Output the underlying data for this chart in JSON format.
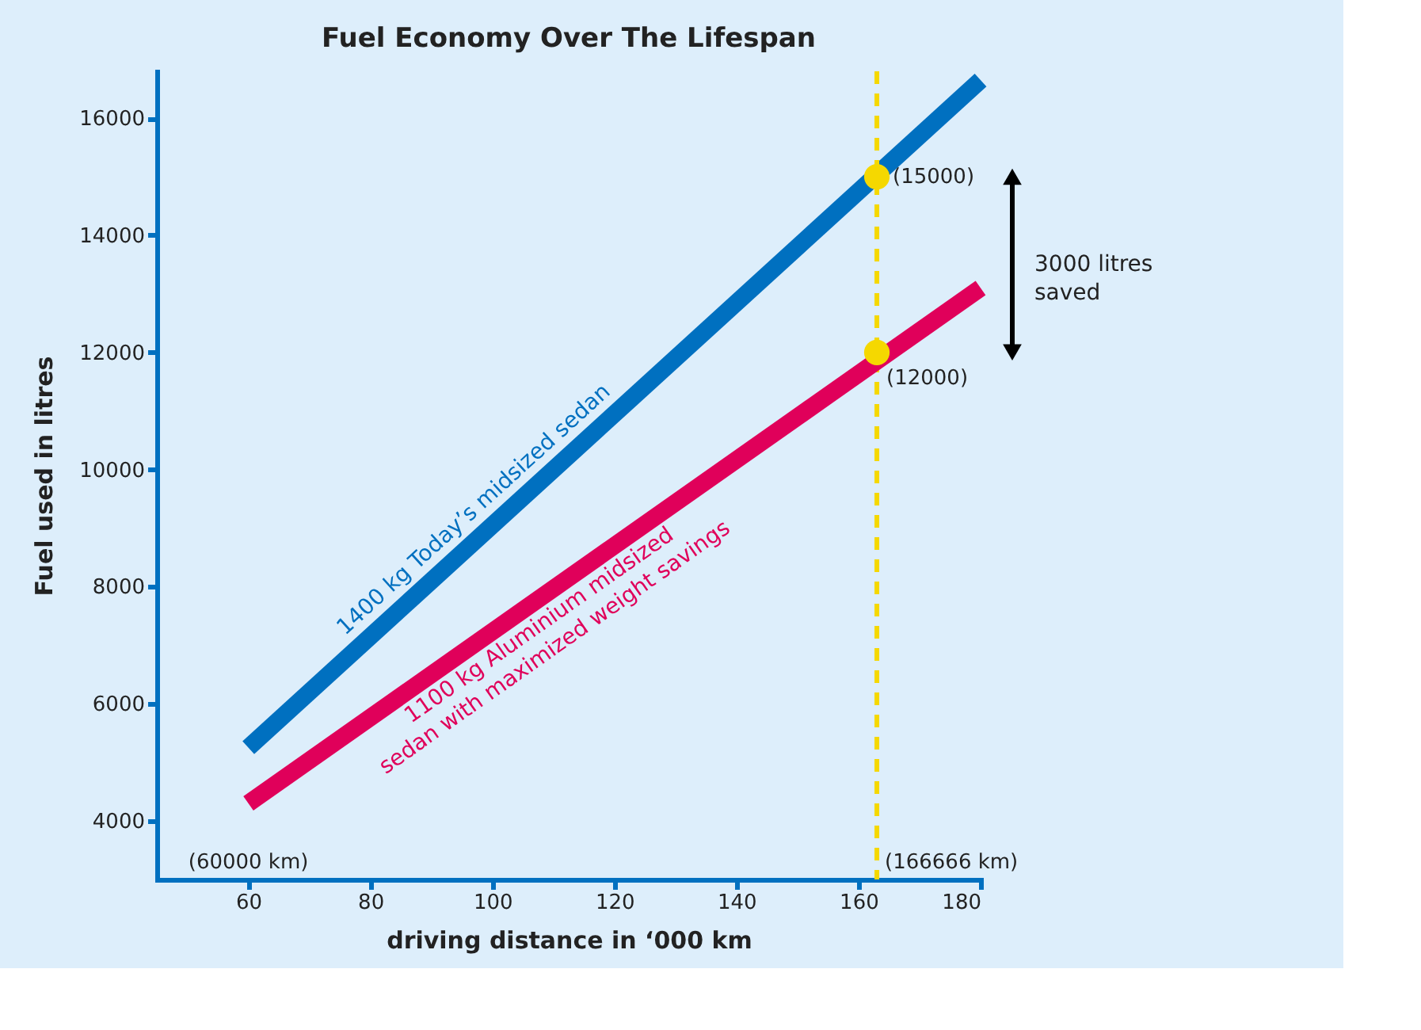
{
  "chart_data": {
    "type": "line",
    "title": "Fuel Economy Over The Lifespan",
    "xlabel": "driving distance in ‘000 km",
    "ylabel": "Fuel used in litres",
    "xlim": [
      45,
      180
    ],
    "xticks": [
      60,
      80,
      100,
      120,
      140,
      160,
      180
    ],
    "ylim": [
      3000,
      16800
    ],
    "yticks": [
      4000,
      6000,
      8000,
      10000,
      12000,
      14000,
      16000
    ],
    "grid": false,
    "series": [
      {
        "name": "1400 kg Today’s midsized sedan",
        "color": "#0070c0",
        "x": [
          60,
          180
        ],
        "values": [
          5250,
          16650
        ]
      },
      {
        "name": "1100 kg  Aluminium midsized\nsedan with maximized weight savings",
        "color": "#e0005a",
        "x": [
          60,
          180
        ],
        "values": [
          4300,
          13100
        ]
      },
      {
        "color": "#f5d800",
        "type": "scatter",
        "marker": "circle",
        "x": [
          163,
          163
        ],
        "values": [
          15000,
          12000
        ]
      }
    ],
    "ref_lines": [
      {
        "axis": "x",
        "value": 163,
        "label": "(166666 km)",
        "color": "#f5d800",
        "line_style": "dashed"
      }
    ],
    "annotations": [
      {
        "text": "(15000)",
        "x": 163,
        "y": 15000
      },
      {
        "text": "(12000)",
        "x": 163,
        "y": 12000
      },
      "(60000 km)",
      "3000 litres saved"
    ]
  }
}
